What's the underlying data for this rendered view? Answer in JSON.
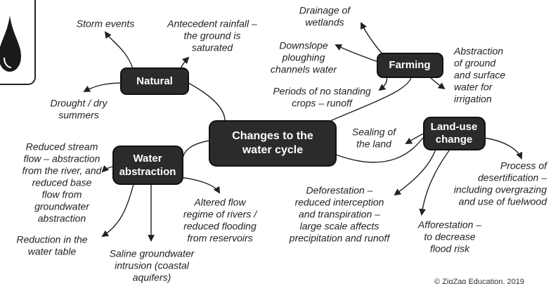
{
  "center": {
    "lines": [
      "Changes to the",
      "water cycle"
    ]
  },
  "hubs": [
    {
      "lines": [
        "Natural"
      ]
    },
    {
      "lines": [
        "Farming"
      ]
    },
    {
      "lines": [
        "Land-use",
        "change"
      ]
    },
    {
      "lines": [
        "Water",
        "abstraction"
      ]
    }
  ],
  "leaves": [
    {
      "lines": [
        "Storm events"
      ]
    },
    {
      "lines": [
        "Antecedent rainfall –",
        "the ground is",
        "saturated"
      ]
    },
    {
      "lines": [
        "Drought / dry",
        "summers"
      ]
    },
    {
      "lines": [
        "Drainage of",
        "wetlands"
      ]
    },
    {
      "lines": [
        "Downslope",
        "ploughing",
        "channels water"
      ]
    },
    {
      "lines": [
        "Abstraction",
        "of ground",
        "and surface",
        "water for",
        "irrigation"
      ]
    },
    {
      "lines": [
        "Periods of no standing",
        "crops – runoff"
      ]
    },
    {
      "lines": [
        "Sealing of",
        "the land"
      ]
    },
    {
      "lines": [
        "Process of",
        "desertification –",
        "including overgrazing",
        "and use of fuelwood"
      ]
    },
    {
      "lines": [
        "Deforestation –",
        "reduced interception",
        "and transpiration –",
        "large scale affects",
        "precipitation and runoff"
      ]
    },
    {
      "lines": [
        "Afforestation –",
        "to decrease",
        "flood risk"
      ]
    },
    {
      "lines": [
        "Reduced stream",
        "flow – abstraction",
        "from the river, and",
        "reduced base",
        "flow from",
        "groundwater",
        "abstraction"
      ]
    },
    {
      "lines": [
        "Altered flow",
        "regime of rivers /",
        "reduced flooding",
        "from reservoirs"
      ]
    },
    {
      "lines": [
        "Reduction in the",
        "water table"
      ]
    },
    {
      "lines": [
        "Saline groundwater",
        "intrusion (coastal",
        "aquifers)"
      ]
    }
  ],
  "footer": "© ZigZag Education, 2019"
}
